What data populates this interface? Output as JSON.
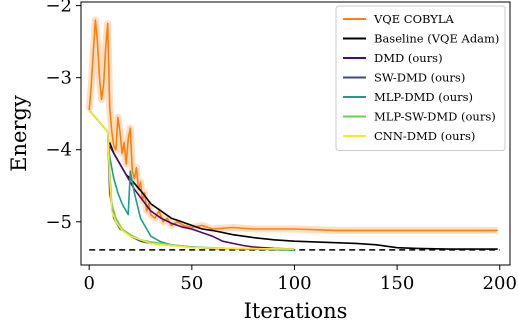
{
  "chart_data": {
    "type": "line",
    "title": "",
    "xlabel": "Iterations",
    "ylabel": "Energy",
    "xlim": [
      -4,
      205
    ],
    "ylim": [
      -5.6,
      -1.95
    ],
    "xticks": [
      0,
      50,
      100,
      150,
      200
    ],
    "yticks": [
      -2,
      -3,
      -4,
      -5
    ],
    "xtick_labels": [
      "0",
      "50",
      "100",
      "150",
      "200"
    ],
    "ytick_labels": [
      "−2",
      "−3",
      "−4",
      "−5"
    ],
    "grid": false,
    "legend_position": "top-right",
    "reference_line": {
      "y": -5.39,
      "x_range": [
        0,
        200
      ],
      "style": "dashed",
      "color": "#000000"
    },
    "series": [
      {
        "name": "VQE COBYLA",
        "color": "#ff7f0e",
        "band": true,
        "points": [
          [
            0,
            -3.45
          ],
          [
            1,
            -3.1
          ],
          [
            2,
            -2.65
          ],
          [
            3,
            -2.2
          ],
          [
            4,
            -2.5
          ],
          [
            5,
            -3.0
          ],
          [
            6,
            -3.3
          ],
          [
            7,
            -3.1
          ],
          [
            8,
            -2.6
          ],
          [
            9,
            -2.25
          ],
          [
            10,
            -3.4
          ],
          [
            11,
            -3.75
          ],
          [
            12,
            -3.95
          ],
          [
            13,
            -4.0
          ],
          [
            14,
            -3.55
          ],
          [
            15,
            -3.75
          ],
          [
            16,
            -4.05
          ],
          [
            17,
            -3.9
          ],
          [
            18,
            -4.2
          ],
          [
            19,
            -3.85
          ],
          [
            20,
            -3.7
          ],
          [
            21,
            -4.3
          ],
          [
            22,
            -4.4
          ],
          [
            23,
            -4.25
          ],
          [
            24,
            -4.55
          ],
          [
            25,
            -4.45
          ],
          [
            26,
            -4.7
          ],
          [
            27,
            -4.6
          ],
          [
            28,
            -4.85
          ],
          [
            29,
            -4.75
          ],
          [
            30,
            -4.9
          ],
          [
            32,
            -4.95
          ],
          [
            34,
            -4.85
          ],
          [
            36,
            -5.0
          ],
          [
            38,
            -4.95
          ],
          [
            40,
            -5.05
          ],
          [
            43,
            -5.0
          ],
          [
            46,
            -5.05
          ],
          [
            50,
            -5.08
          ],
          [
            55,
            -5.05
          ],
          [
            60,
            -5.1
          ],
          [
            70,
            -5.08
          ],
          [
            80,
            -5.1
          ],
          [
            100,
            -5.1
          ],
          [
            120,
            -5.12
          ],
          [
            150,
            -5.12
          ],
          [
            175,
            -5.12
          ],
          [
            199,
            -5.12
          ]
        ]
      },
      {
        "name": "Baseline (VQE Adam)",
        "color": "#000000",
        "band": false,
        "points": [
          [
            10,
            -3.9
          ],
          [
            12,
            -4.05
          ],
          [
            15,
            -4.2
          ],
          [
            18,
            -4.35
          ],
          [
            20,
            -4.4
          ],
          [
            23,
            -4.5
          ],
          [
            26,
            -4.6
          ],
          [
            30,
            -4.75
          ],
          [
            35,
            -4.85
          ],
          [
            40,
            -4.95
          ],
          [
            45,
            -5.0
          ],
          [
            50,
            -5.05
          ],
          [
            55,
            -5.1
          ],
          [
            60,
            -5.12
          ],
          [
            70,
            -5.18
          ],
          [
            80,
            -5.22
          ],
          [
            90,
            -5.25
          ],
          [
            100,
            -5.27
          ],
          [
            110,
            -5.28
          ],
          [
            120,
            -5.29
          ],
          [
            130,
            -5.3
          ],
          [
            140,
            -5.32
          ],
          [
            150,
            -5.36
          ],
          [
            160,
            -5.37
          ],
          [
            175,
            -5.38
          ],
          [
            199,
            -5.38
          ]
        ]
      },
      {
        "name": "DMD (ours)",
        "color": "#4b0c6b",
        "band": false,
        "points": [
          [
            10,
            -3.95
          ],
          [
            14,
            -4.15
          ],
          [
            18,
            -4.35
          ],
          [
            22,
            -4.55
          ],
          [
            26,
            -4.7
          ],
          [
            30,
            -4.85
          ],
          [
            35,
            -4.95
          ],
          [
            40,
            -5.02
          ],
          [
            45,
            -5.07
          ],
          [
            50,
            -5.1
          ],
          [
            55,
            -5.15
          ],
          [
            60,
            -5.2
          ],
          [
            65,
            -5.27
          ],
          [
            70,
            -5.3
          ],
          [
            75,
            -5.33
          ],
          [
            80,
            -5.35
          ],
          [
            90,
            -5.37
          ],
          [
            100,
            -5.38
          ]
        ]
      },
      {
        "name": "SW-DMD (ours)",
        "color": "#3b4a8c",
        "band": false,
        "points": [
          [
            0,
            -3.45
          ],
          [
            3,
            -3.55
          ],
          [
            6,
            -3.65
          ],
          [
            9,
            -3.75
          ],
          [
            10,
            -4.6
          ],
          [
            12,
            -4.95
          ],
          [
            15,
            -5.1
          ],
          [
            18,
            -5.15
          ],
          [
            20,
            -5.2
          ],
          [
            25,
            -5.27
          ],
          [
            30,
            -5.3
          ],
          [
            40,
            -5.33
          ],
          [
            50,
            -5.35
          ],
          [
            60,
            -5.37
          ],
          [
            80,
            -5.38
          ],
          [
            100,
            -5.39
          ]
        ]
      },
      {
        "name": "MLP-DMD (ours)",
        "color": "#1f9e89",
        "band": false,
        "points": [
          [
            0,
            -3.45
          ],
          [
            3,
            -3.55
          ],
          [
            6,
            -3.65
          ],
          [
            9,
            -3.75
          ],
          [
            10,
            -4.1
          ],
          [
            12,
            -4.4
          ],
          [
            14,
            -4.6
          ],
          [
            16,
            -4.75
          ],
          [
            18,
            -4.85
          ],
          [
            19,
            -4.9
          ],
          [
            20,
            -4.3
          ],
          [
            22,
            -4.6
          ],
          [
            25,
            -4.95
          ],
          [
            28,
            -5.1
          ],
          [
            30,
            -5.2
          ],
          [
            35,
            -5.28
          ],
          [
            40,
            -5.32
          ],
          [
            50,
            -5.35
          ],
          [
            60,
            -5.37
          ],
          [
            80,
            -5.38
          ],
          [
            100,
            -5.39
          ]
        ]
      },
      {
        "name": "MLP-SW-DMD (ours)",
        "color": "#6ece58",
        "band": false,
        "points": [
          [
            0,
            -3.45
          ],
          [
            3,
            -3.55
          ],
          [
            6,
            -3.65
          ],
          [
            9,
            -3.75
          ],
          [
            10,
            -4.3
          ],
          [
            11,
            -4.75
          ],
          [
            13,
            -4.95
          ],
          [
            16,
            -5.1
          ],
          [
            20,
            -5.18
          ],
          [
            25,
            -5.25
          ],
          [
            30,
            -5.28
          ],
          [
            40,
            -5.32
          ],
          [
            50,
            -5.35
          ],
          [
            70,
            -5.37
          ],
          [
            100,
            -5.38
          ]
        ]
      },
      {
        "name": "CNN-DMD (ours)",
        "color": "#fde725",
        "band": false,
        "points": [
          [
            0,
            -3.45
          ],
          [
            3,
            -3.55
          ],
          [
            6,
            -3.65
          ],
          [
            9,
            -3.75
          ],
          [
            10,
            -4.4
          ],
          [
            11,
            -4.85
          ],
          [
            13,
            -5.0
          ],
          [
            16,
            -5.12
          ],
          [
            20,
            -5.2
          ],
          [
            25,
            -5.25
          ],
          [
            30,
            -5.3
          ],
          [
            40,
            -5.33
          ],
          [
            50,
            -5.36
          ],
          [
            70,
            -5.37
          ],
          [
            100,
            -5.38
          ]
        ]
      }
    ]
  }
}
